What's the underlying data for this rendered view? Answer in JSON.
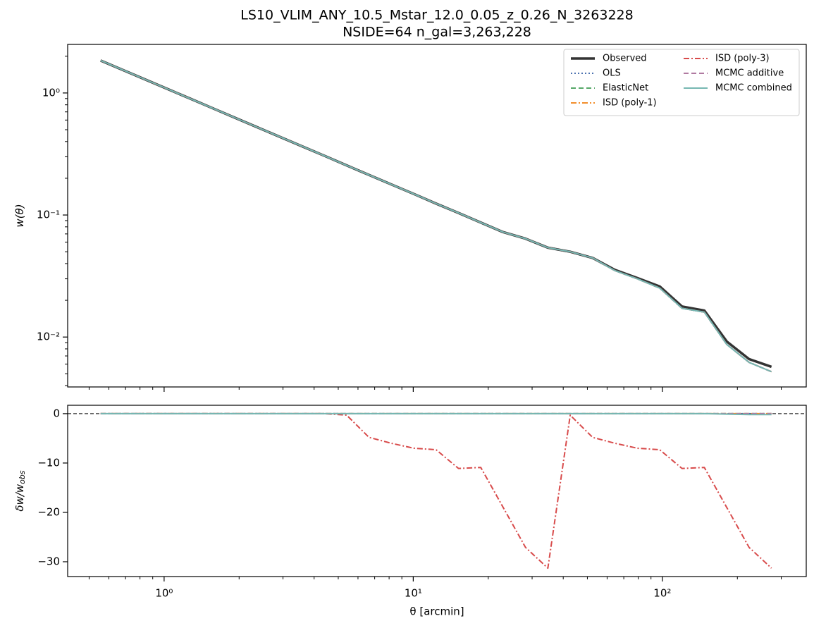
{
  "chart_data": [
    {
      "type": "line",
      "title": "LS10_VLIM_ANY_10.5_Mstar_12.0_0.05_z_0.26_N_3263228",
      "subtitle": "NSIDE=64  n_gal=3,263,228",
      "ylabel": "w(θ)",
      "xscale": "log",
      "yscale": "log",
      "legend": "upper right",
      "legend_columns": 2,
      "xlim": [
        0.41,
        378
      ],
      "ylim": [
        0.0039,
        2.5
      ],
      "xticks": [
        1,
        10,
        100
      ],
      "xminorticks": [
        0.5,
        0.6,
        0.7,
        0.8,
        0.9,
        2,
        3,
        4,
        5,
        6,
        7,
        8,
        9,
        20,
        30,
        40,
        50,
        60,
        70,
        80,
        90,
        200,
        300
      ],
      "yticks": [
        {
          "value": 0.01,
          "label": "10⁻²"
        },
        {
          "value": 0.1,
          "label": "10⁻¹"
        },
        {
          "value": 1,
          "label": "10⁰"
        }
      ],
      "yminorticks": [
        0.004,
        0.005,
        0.006,
        0.007,
        0.008,
        0.009,
        0.02,
        0.03,
        0.04,
        0.05,
        0.06,
        0.07,
        0.08,
        0.09,
        0.2,
        0.3,
        0.4,
        0.5,
        0.6,
        0.7,
        0.8,
        0.9,
        2
      ],
      "x": [
        0.556,
        0.684,
        0.841,
        1.034,
        1.272,
        1.564,
        1.923,
        2.364,
        2.907,
        3.574,
        4.395,
        5.403,
        6.644,
        8.169,
        10.04,
        12.35,
        15.19,
        18.67,
        22.96,
        28.23,
        34.7,
        42.67,
        52.47,
        64.5,
        79.31,
        97.52,
        119.9,
        147.4,
        181.3,
        222.9,
        274.1
      ],
      "series": [
        {
          "name": "Observed",
          "color": "#333333",
          "linestyle": "solid",
          "width": 3.5,
          "values": [
            1.845,
            1.542,
            1.288,
            1.076,
            0.899,
            0.751,
            0.627,
            0.524,
            0.438,
            0.366,
            0.306,
            0.255,
            0.213,
            0.178,
            0.149,
            0.124,
            0.104,
            0.0867,
            0.0724,
            0.064,
            0.054,
            0.05,
            0.0445,
            0.0355,
            0.0305,
            0.026,
            0.0178,
            0.0165,
            0.0092,
            0.0066,
            0.0057
          ]
        },
        {
          "name": "OLS",
          "color": "#4c72b0",
          "linestyle": "dotted",
          "width": 2,
          "values": [
            1.845,
            1.542,
            1.288,
            1.076,
            0.899,
            0.751,
            0.627,
            0.524,
            0.438,
            0.366,
            0.306,
            0.255,
            0.213,
            0.178,
            0.149,
            0.124,
            0.104,
            0.0867,
            0.0724,
            0.064,
            0.054,
            0.05,
            0.0445,
            0.035,
            0.03,
            0.0252,
            0.0172,
            0.016,
            0.0087,
            0.0062,
            0.0052
          ]
        },
        {
          "name": "ElasticNet",
          "color": "#55a868",
          "linestyle": "dashed",
          "width": 2,
          "values": [
            1.845,
            1.542,
            1.288,
            1.076,
            0.899,
            0.751,
            0.627,
            0.524,
            0.438,
            0.366,
            0.306,
            0.255,
            0.213,
            0.178,
            0.149,
            0.124,
            0.104,
            0.0867,
            0.0724,
            0.064,
            0.054,
            0.05,
            0.0445,
            0.035,
            0.03,
            0.0252,
            0.0172,
            0.016,
            0.0087,
            0.0062,
            0.0052
          ]
        },
        {
          "name": "ISD (poly-1)",
          "color": "#f28e2b",
          "linestyle": "dashdot",
          "width": 2,
          "values": [
            1.845,
            1.542,
            1.288,
            1.076,
            0.899,
            0.751,
            0.627,
            0.524,
            0.438,
            0.366,
            0.306,
            0.255,
            0.213,
            0.178,
            0.149,
            0.124,
            0.104,
            0.0867,
            0.0724,
            0.064,
            0.054,
            0.05,
            0.0445,
            0.035,
            0.03,
            0.0252,
            0.0172,
            0.016,
            0.0087,
            0.0062,
            0.0052
          ]
        },
        {
          "name": "ISD (poly-3)",
          "color": "#d84b4b",
          "linestyle": "dashdot",
          "width": 2,
          "values": [
            1.845,
            1.542,
            1.288,
            1.076,
            0.899,
            0.751,
            0.627,
            0.524,
            0.438,
            0.366,
            0.306,
            0.255,
            0.213,
            0.178,
            0.149,
            0.124,
            0.104,
            0.0867,
            0.0724,
            0.064,
            0.054,
            0.05,
            0.0445,
            0.035,
            0.03,
            0.0252,
            0.0172,
            0.016,
            0.0087,
            0.0062,
            0.0052
          ]
        },
        {
          "name": "MCMC additive",
          "color": "#b07aa1",
          "linestyle": "dashed",
          "width": 2,
          "values": [
            1.845,
            1.542,
            1.288,
            1.076,
            0.899,
            0.751,
            0.627,
            0.524,
            0.438,
            0.366,
            0.306,
            0.255,
            0.213,
            0.178,
            0.149,
            0.124,
            0.104,
            0.0867,
            0.0724,
            0.064,
            0.054,
            0.05,
            0.0445,
            0.035,
            0.03,
            0.0252,
            0.0172,
            0.016,
            0.0087,
            0.0062,
            0.0052
          ]
        },
        {
          "name": "MCMC combined",
          "color": "#76b7b2",
          "linestyle": "solid",
          "width": 2,
          "values": [
            1.845,
            1.542,
            1.288,
            1.076,
            0.899,
            0.751,
            0.627,
            0.524,
            0.438,
            0.366,
            0.306,
            0.255,
            0.213,
            0.178,
            0.149,
            0.124,
            0.104,
            0.0867,
            0.0724,
            0.064,
            0.054,
            0.05,
            0.0445,
            0.035,
            0.03,
            0.0252,
            0.0172,
            0.016,
            0.0087,
            0.0062,
            0.0052
          ]
        }
      ]
    },
    {
      "type": "line",
      "xlabel": "θ [arcmin]",
      "ylabel": "δw/w",
      "ylabel_subscript": "obs",
      "xscale": "log",
      "yscale": "linear",
      "xlim": [
        0.41,
        378
      ],
      "ylim": [
        -33,
        1.7
      ],
      "xticks": [
        {
          "value": 1,
          "label": "10⁰"
        },
        {
          "value": 10,
          "label": "10¹"
        },
        {
          "value": 100,
          "label": "10²"
        }
      ],
      "xminorticks": [
        0.5,
        0.6,
        0.7,
        0.8,
        0.9,
        2,
        3,
        4,
        5,
        6,
        7,
        8,
        9,
        20,
        30,
        40,
        50,
        60,
        70,
        80,
        90,
        200,
        300
      ],
      "yticks": [
        {
          "value": -30,
          "label": "−30"
        },
        {
          "value": -20,
          "label": "−20"
        },
        {
          "value": -10,
          "label": "−10"
        },
        0
      ],
      "hline": 0,
      "x": [
        0.556,
        0.684,
        0.841,
        1.034,
        1.272,
        1.564,
        1.923,
        2.364,
        2.907,
        3.574,
        4.395,
        5.403,
        6.644,
        8.169,
        10.04,
        12.35,
        15.19,
        18.67,
        22.96,
        28.23,
        34.7,
        42.67,
        52.47,
        64.5,
        79.31,
        97.52,
        119.9,
        147.4,
        181.3,
        222.9,
        274.1
      ],
      "series": [
        {
          "name": "OLS",
          "color": "#4c72b0",
          "linestyle": "dotted",
          "width": 2,
          "values": [
            0,
            0,
            0,
            0,
            0,
            0,
            0,
            0,
            0,
            0,
            0,
            0,
            0,
            0,
            0,
            0,
            0,
            0,
            0,
            0,
            0,
            0,
            0,
            0,
            0,
            0,
            0,
            0,
            0,
            0,
            0
          ]
        },
        {
          "name": "ElasticNet",
          "color": "#55a868",
          "linestyle": "dashed",
          "width": 2,
          "values": [
            0,
            0,
            0,
            0,
            0,
            0,
            0,
            0,
            0,
            0,
            0,
            0,
            0,
            0,
            0,
            0,
            0,
            0,
            0,
            0,
            0,
            0,
            0,
            0,
            0,
            0,
            0,
            0,
            0,
            0,
            0
          ]
        },
        {
          "name": "ISD (poly-1)",
          "color": "#f28e2b",
          "linestyle": "dashdot",
          "width": 2,
          "values": [
            0,
            0,
            0,
            0,
            0,
            0,
            0,
            0,
            0,
            0,
            0,
            0,
            0,
            0,
            0,
            0,
            0,
            0,
            0,
            0,
            0,
            0,
            0,
            0,
            0,
            0,
            0,
            0,
            0,
            0,
            0
          ]
        },
        {
          "name": "ISD (poly-3)",
          "color": "#d84b4b",
          "linestyle": "dashdot",
          "width": 2,
          "values": [
            0,
            0,
            0,
            0,
            0,
            0,
            0,
            0,
            0,
            0,
            0,
            -0.3,
            -4.8,
            -6.0,
            -7.0,
            -7.3,
            -11.1,
            -10.9,
            -19.0,
            -27.1,
            -31.3,
            -0.3,
            -4.8,
            -6.0,
            -7.0,
            -7.3,
            -11.1,
            -10.9,
            -19.0,
            -27.1,
            -31.3
          ]
        },
        {
          "name": "MCMC additive",
          "color": "#b07aa1",
          "linestyle": "dashed",
          "width": 2,
          "values": [
            0,
            0,
            0,
            0,
            0,
            0,
            0,
            0,
            0,
            0,
            0,
            0,
            0,
            0,
            0,
            0,
            0,
            0,
            0,
            0,
            0,
            0,
            0,
            0,
            0,
            0,
            0,
            0,
            0,
            0,
            0
          ]
        },
        {
          "name": "MCMC combined",
          "color": "#76b7b2",
          "linestyle": "solid",
          "width": 2,
          "values": [
            0,
            0,
            0,
            0,
            0,
            0,
            0,
            0,
            0,
            0,
            0,
            0,
            0,
            0,
            0,
            0,
            0,
            0,
            0,
            0,
            0,
            0,
            0,
            0,
            0,
            0,
            0,
            0,
            -0.1,
            -0.2,
            -0.2
          ]
        }
      ]
    }
  ]
}
